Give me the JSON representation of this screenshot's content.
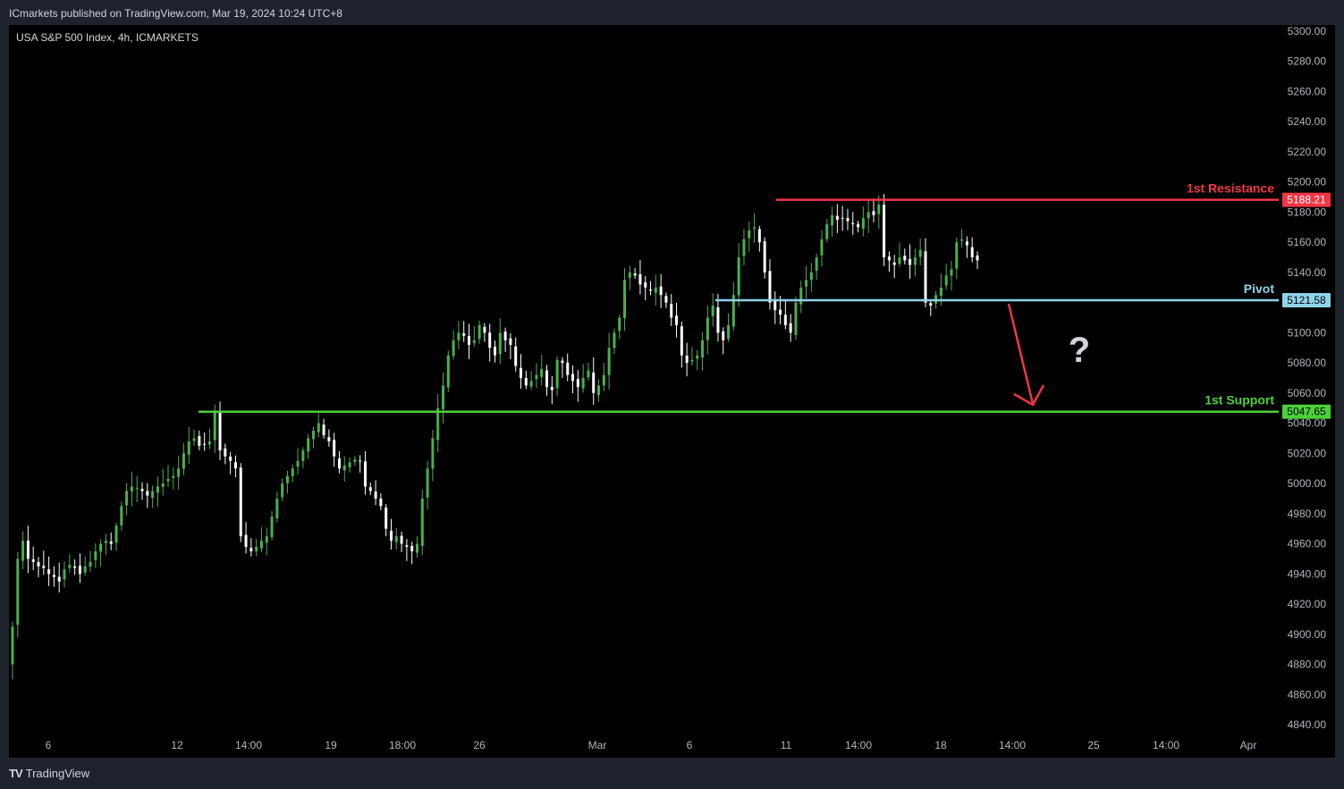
{
  "header": {
    "publisher": "ICmarkets published on TradingView.com, Mar 19, 2024 10:24 UTC+8"
  },
  "symbol": {
    "title": "USA S&P 500 Index, 4h, ICMARKETS"
  },
  "footer": {
    "brand": "TradingView",
    "logo": "TV"
  },
  "colors": {
    "background": "#000000",
    "bullish": "#4caf50",
    "bearish": "#ffffff",
    "resistance": "#f23645",
    "pivot": "#8fd3ea",
    "support": "#4cd137",
    "arrow": "#f23645",
    "question": "#d1d4dc"
  },
  "chart_data": {
    "type": "candlestick",
    "timeframe": "4h",
    "y_ticks": [
      "5300.00",
      "5280.00",
      "5260.00",
      "5240.00",
      "5220.00",
      "5200.00",
      "5180.00",
      "5160.00",
      "5140.00",
      "5120.00",
      "5100.00",
      "5080.00",
      "5060.00",
      "5040.00",
      "5020.00",
      "5000.00",
      "4980.00",
      "4960.00",
      "4940.00",
      "4920.00",
      "4900.00",
      "4880.00",
      "4860.00",
      "4840.00"
    ],
    "ylim": [
      4830,
      5305
    ],
    "x_ticks": [
      "6",
      "12",
      "14:00",
      "19",
      "18:00",
      "26",
      "Mar",
      "6",
      "11",
      "14:00",
      "18",
      "14:00",
      "25",
      "14:00",
      "Apr"
    ],
    "levels": [
      {
        "name": "1st Resistance",
        "value": 5188.21,
        "label": "5188.21"
      },
      {
        "name": "Pivot",
        "value": 5121.58,
        "label": "5121.58"
      },
      {
        "name": "1st Support",
        "value": 5047.65,
        "label": "5047.65"
      }
    ],
    "annotation": "?",
    "closes": [
      4905,
      4950,
      4962,
      4950,
      4948,
      4945,
      4944,
      4940,
      4938,
      4935,
      4943,
      4946,
      4944,
      4940,
      4945,
      4948,
      4955,
      4960,
      4962,
      4960,
      4972,
      4985,
      4995,
      4998,
      4997,
      4995,
      4992,
      4995,
      4998,
      5000,
      5003,
      5005,
      5010,
      5020,
      5028,
      5030,
      5025,
      5026,
      5028,
      5048,
      5022,
      5018,
      5015,
      5010,
      4965,
      4958,
      4955,
      4958,
      4962,
      4965,
      4978,
      4990,
      5000,
      5005,
      5010,
      5015,
      5022,
      5030,
      5035,
      5040,
      5032,
      5028,
      5018,
      5010,
      5012,
      5014,
      5016,
      5015,
      4998,
      4995,
      4990,
      4985,
      4970,
      4962,
      4965,
      4960,
      4958,
      4955,
      4960,
      4990,
      5010,
      5030,
      5050,
      5065,
      5085,
      5095,
      5100,
      5098,
      5092,
      5095,
      5105,
      5100,
      5090,
      5085,
      5100,
      5095,
      5092,
      5078,
      5070,
      5065,
      5068,
      5072,
      5076,
      5064,
      5062,
      5082,
      5080,
      5072,
      5068,
      5064,
      5070,
      5075,
      5060,
      5065,
      5072,
      5090,
      5100,
      5110,
      5135,
      5140,
      5138,
      5132,
      5130,
      5128,
      5130,
      5125,
      5120,
      5110,
      5105,
      5085,
      5080,
      5082,
      5085,
      5095,
      5110,
      5118,
      5100,
      5095,
      5105,
      5125,
      5150,
      5162,
      5168,
      5170,
      5160,
      5140,
      5120,
      5115,
      5112,
      5105,
      5100,
      5120,
      5130,
      5135,
      5140,
      5150,
      5162,
      5172,
      5178,
      5175,
      5176,
      5174,
      5172,
      5170,
      5176,
      5180,
      5178,
      5185,
      5150,
      5148,
      5145,
      5150,
      5148,
      5145,
      5150,
      5155,
      5120,
      5118,
      5125,
      5130,
      5138,
      5142,
      5160,
      5162,
      5158,
      5150,
      5148
    ]
  }
}
